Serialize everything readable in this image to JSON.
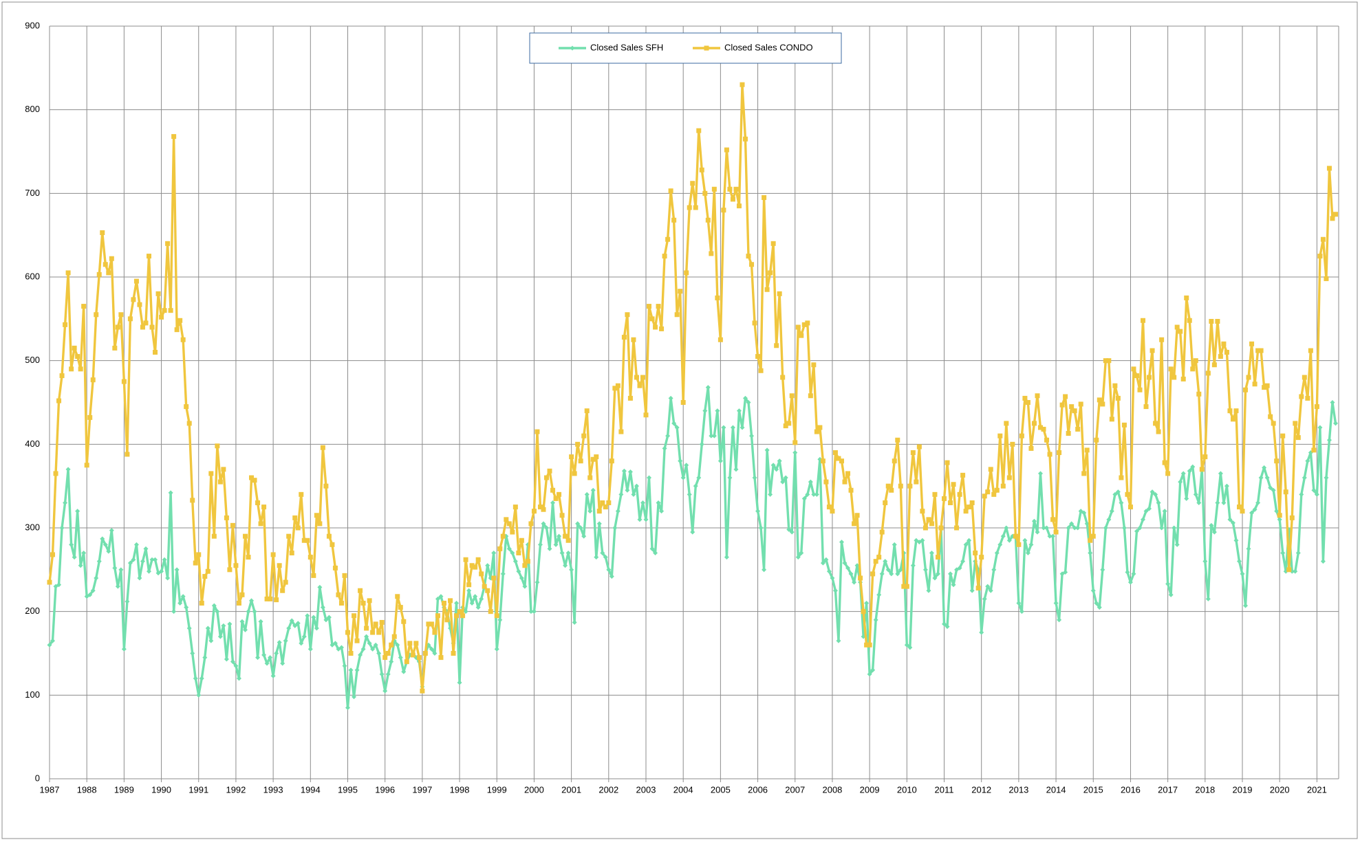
{
  "chart_data": {
    "type": "line",
    "categories": [
      "1987",
      null,
      null,
      null,
      null,
      null,
      null,
      null,
      null,
      null,
      null,
      null,
      "1988",
      null,
      null,
      null,
      null,
      null,
      null,
      null,
      null,
      null,
      null,
      null,
      "1989",
      null,
      null,
      null,
      null,
      null,
      null,
      null,
      null,
      null,
      null,
      null,
      "1990",
      null,
      null,
      null,
      null,
      null,
      null,
      null,
      null,
      null,
      null,
      null,
      "1991",
      null,
      null,
      null,
      null,
      null,
      null,
      null,
      null,
      null,
      null,
      null,
      "1992",
      null,
      null,
      null,
      null,
      null,
      null,
      null,
      null,
      null,
      null,
      null,
      "1993",
      null,
      null,
      null,
      null,
      null,
      null,
      null,
      null,
      null,
      null,
      null,
      "1994",
      null,
      null,
      null,
      null,
      null,
      null,
      null,
      null,
      null,
      null,
      null,
      "1995",
      null,
      null,
      null,
      null,
      null,
      null,
      null,
      null,
      null,
      null,
      null,
      "1996",
      null,
      null,
      null,
      null,
      null,
      null,
      null,
      null,
      null,
      null,
      null,
      "1997",
      null,
      null,
      null,
      null,
      null,
      null,
      null,
      null,
      null,
      null,
      null,
      "1998",
      null,
      null,
      null,
      null,
      null,
      null,
      null,
      null,
      null,
      null,
      null,
      "1999",
      null,
      null,
      null,
      null,
      null,
      null,
      null,
      null,
      null,
      null,
      null,
      "2000",
      null,
      null,
      null,
      null,
      null,
      null,
      null,
      null,
      null,
      null,
      null,
      "2001",
      null,
      null,
      null,
      null,
      null,
      null,
      null,
      null,
      null,
      null,
      null,
      "2002",
      null,
      null,
      null,
      null,
      null,
      null,
      null,
      null,
      null,
      null,
      null,
      "2003",
      null,
      null,
      null,
      null,
      null,
      null,
      null,
      null,
      null,
      null,
      null,
      "2004",
      null,
      null,
      null,
      null,
      null,
      null,
      null,
      null,
      null,
      null,
      null,
      "2005",
      null,
      null,
      null,
      null,
      null,
      null,
      null,
      null,
      null,
      null,
      null,
      "2006",
      null,
      null,
      null,
      null,
      null,
      null,
      null,
      null,
      null,
      null,
      null,
      "2007",
      null,
      null,
      null,
      null,
      null,
      null,
      null,
      null,
      null,
      null,
      null,
      "2008",
      null,
      null,
      null,
      null,
      null,
      null,
      null,
      null,
      null,
      null,
      null,
      "2009",
      null,
      null,
      null,
      null,
      null,
      null,
      null,
      null,
      null,
      null,
      null,
      "2010",
      null,
      null,
      null,
      null,
      null,
      null,
      null,
      null,
      null,
      null,
      null,
      "2011",
      null,
      null,
      null,
      null,
      null,
      null,
      null,
      null,
      null,
      null,
      null,
      "2012",
      null,
      null,
      null,
      null,
      null,
      null,
      null,
      null,
      null,
      null,
      null,
      "2013",
      null,
      null,
      null,
      null,
      null,
      null,
      null,
      null,
      null,
      null,
      null,
      "2014",
      null,
      null,
      null,
      null,
      null,
      null,
      null,
      null,
      null,
      null,
      null,
      "2015",
      null,
      null,
      null,
      null,
      null,
      null,
      null,
      null,
      null,
      null,
      null,
      "2016",
      null,
      null,
      null,
      null,
      null,
      null,
      null,
      null,
      null,
      null,
      null,
      "2017",
      null,
      null,
      null,
      null,
      null,
      null,
      null,
      null,
      null,
      null,
      null,
      "2018",
      null,
      null,
      null,
      null,
      null,
      null,
      null,
      null,
      null,
      null,
      null,
      "2019",
      null,
      null,
      null,
      null,
      null,
      null,
      null,
      null,
      null,
      null,
      null,
      "2020",
      null,
      null,
      null,
      null,
      null,
      null,
      null,
      null,
      null,
      null,
      null,
      "2021",
      null,
      null,
      null,
      null,
      null,
      null
    ],
    "series": [
      {
        "name": "Closed Sales SFH",
        "color": "#72dfae",
        "marker": "diamond",
        "values": [
          160,
          165,
          230,
          232,
          300,
          330,
          370,
          280,
          265,
          320,
          255,
          270,
          218,
          220,
          225,
          240,
          260,
          287,
          280,
          272,
          297,
          252,
          230,
          250,
          155,
          212,
          258,
          262,
          280,
          240,
          260,
          275,
          248,
          262,
          262,
          246,
          248,
          262,
          240,
          342,
          200,
          250,
          210,
          218,
          205,
          180,
          150,
          120,
          100,
          120,
          145,
          180,
          165,
          207,
          200,
          170,
          183,
          143,
          185,
          140,
          135,
          120,
          188,
          178,
          200,
          213,
          200,
          145,
          188,
          148,
          138,
          145,
          123,
          150,
          163,
          138,
          165,
          180,
          189,
          183,
          186,
          162,
          170,
          195,
          155,
          193,
          180,
          229,
          205,
          190,
          193,
          160,
          162,
          155,
          157,
          135,
          85,
          130,
          98,
          130,
          148,
          155,
          170,
          162,
          155,
          160,
          150,
          125,
          105,
          125,
          140,
          165,
          160,
          145,
          128,
          140,
          148,
          150,
          145,
          140,
          110,
          150,
          160,
          155,
          150,
          215,
          218,
          205,
          200,
          180,
          162,
          210,
          115,
          205,
          200,
          225,
          210,
          218,
          205,
          215,
          230,
          255,
          240,
          270,
          155,
          190,
          245,
          290,
          275,
          270,
          260,
          248,
          240,
          230,
          280,
          200,
          200,
          235,
          280,
          305,
          300,
          275,
          330,
          280,
          290,
          270,
          255,
          270,
          250,
          187,
          305,
          300,
          290,
          340,
          320,
          345,
          265,
          305,
          270,
          265,
          250,
          242,
          300,
          320,
          340,
          368,
          345,
          367,
          340,
          350,
          310,
          330,
          310,
          360,
          275,
          270,
          330,
          320,
          395,
          410,
          455,
          425,
          420,
          380,
          360,
          375,
          340,
          295,
          350,
          360,
          400,
          440,
          468,
          410,
          410,
          440,
          380,
          420,
          265,
          360,
          420,
          370,
          440,
          420,
          455,
          450,
          410,
          360,
          320,
          300,
          250,
          393,
          340,
          375,
          370,
          380,
          355,
          360,
          298,
          295,
          390,
          265,
          270,
          335,
          340,
          355,
          340,
          340,
          382,
          258,
          262,
          248,
          240,
          225,
          165,
          283,
          258,
          252,
          245,
          235,
          255,
          235,
          170,
          210,
          125,
          130,
          190,
          220,
          245,
          260,
          250,
          245,
          280,
          245,
          250,
          270,
          160,
          157,
          255,
          285,
          283,
          285,
          250,
          225,
          270,
          240,
          245,
          300,
          185,
          182,
          245,
          232,
          250,
          252,
          260,
          280,
          285,
          225,
          260,
          250,
          175,
          215,
          230,
          225,
          250,
          270,
          280,
          290,
          300,
          285,
          290,
          290,
          210,
          200,
          285,
          270,
          280,
          308,
          295,
          365,
          300,
          300,
          290,
          290,
          210,
          190,
          245,
          247,
          300,
          305,
          300,
          300,
          320,
          318,
          305,
          270,
          225,
          210,
          205,
          250,
          300,
          310,
          320,
          340,
          343,
          330,
          300,
          247,
          235,
          245,
          296,
          300,
          310,
          320,
          323,
          343,
          340,
          330,
          300,
          320,
          233,
          220,
          300,
          280,
          355,
          365,
          335,
          368,
          373,
          340,
          330,
          370,
          260,
          215,
          303,
          295,
          330,
          365,
          330,
          350,
          310,
          306,
          285,
          260,
          245,
          207,
          275,
          318,
          322,
          330,
          360,
          372,
          360,
          348,
          345,
          320,
          310,
          270,
          248,
          298,
          248,
          248,
          270,
          340,
          360,
          380,
          390,
          345,
          340,
          420,
          260,
          360,
          405,
          450,
          425
        ]
      },
      {
        "name": "Closed Sales CONDO",
        "color": "#f0c63e",
        "marker": "square",
        "values": [
          235,
          268,
          365,
          452,
          482,
          543,
          605,
          490,
          515,
          505,
          490,
          565,
          375,
          432,
          477,
          555,
          603,
          653,
          615,
          605,
          622,
          515,
          540,
          555,
          475,
          388,
          550,
          573,
          595,
          567,
          540,
          545,
          625,
          540,
          510,
          580,
          552,
          560,
          640,
          560,
          768,
          537,
          548,
          525,
          445,
          425,
          333,
          258,
          268,
          210,
          242,
          248,
          365,
          290,
          398,
          355,
          370,
          312,
          250,
          303,
          255,
          210,
          220,
          290,
          265,
          360,
          357,
          330,
          305,
          325,
          215,
          215,
          268,
          214,
          255,
          225,
          235,
          290,
          270,
          312,
          300,
          340,
          285,
          285,
          265,
          243,
          315,
          305,
          396,
          350,
          290,
          280,
          252,
          220,
          210,
          243,
          175,
          150,
          195,
          165,
          225,
          210,
          180,
          213,
          175,
          185,
          175,
          187,
          145,
          150,
          160,
          170,
          218,
          205,
          188,
          140,
          162,
          148,
          162,
          145,
          105,
          150,
          185,
          185,
          175,
          195,
          145,
          210,
          190,
          213,
          150,
          195,
          200,
          195,
          262,
          232,
          255,
          253,
          262,
          245,
          230,
          225,
          200,
          240,
          195,
          275,
          290,
          310,
          305,
          295,
          325,
          270,
          285,
          255,
          260,
          305,
          320,
          415,
          325,
          322,
          360,
          368,
          345,
          335,
          340,
          315,
          290,
          285,
          385,
          365,
          400,
          380,
          410,
          440,
          360,
          382,
          385,
          320,
          330,
          325,
          330,
          380,
          467,
          470,
          415,
          528,
          555,
          455,
          525,
          480,
          470,
          480,
          435,
          565,
          550,
          540,
          565,
          538,
          625,
          645,
          703,
          668,
          555,
          583,
          450,
          605,
          683,
          712,
          683,
          775,
          728,
          700,
          668,
          628,
          705,
          575,
          525,
          680,
          752,
          705,
          693,
          705,
          685,
          830,
          765,
          625,
          615,
          545,
          505,
          488,
          695,
          585,
          605,
          640,
          518,
          580,
          480,
          422,
          425,
          458,
          402,
          540,
          530,
          543,
          545,
          458,
          495,
          415,
          420,
          380,
          355,
          325,
          320,
          390,
          383,
          380,
          355,
          365,
          345,
          305,
          315,
          240,
          200,
          160,
          160,
          245,
          260,
          265,
          295,
          330,
          350,
          345,
          380,
          405,
          350,
          230,
          230,
          350,
          390,
          355,
          397,
          320,
          300,
          310,
          305,
          340,
          265,
          300,
          335,
          378,
          330,
          352,
          300,
          340,
          363,
          320,
          325,
          330,
          270,
          228,
          265,
          338,
          343,
          370,
          340,
          345,
          410,
          350,
          425,
          360,
          400,
          290,
          280,
          410,
          455,
          450,
          395,
          425,
          458,
          420,
          418,
          405,
          388,
          310,
          295,
          390,
          447,
          457,
          413,
          445,
          440,
          418,
          448,
          365,
          393,
          285,
          290,
          405,
          453,
          448,
          500,
          500,
          430,
          470,
          455,
          360,
          423,
          340,
          325,
          490,
          482,
          465,
          548,
          445,
          480,
          512,
          425,
          415,
          525,
          378,
          365,
          490,
          480,
          540,
          535,
          478,
          575,
          548,
          490,
          500,
          460,
          370,
          385,
          485,
          547,
          495,
          547,
          505,
          520,
          510,
          440,
          430,
          440,
          325,
          320,
          465,
          480,
          520,
          472,
          512,
          512,
          468,
          470,
          433,
          425,
          380,
          315,
          410,
          343,
          250,
          312,
          425,
          408,
          457,
          480,
          455,
          512,
          393,
          445,
          625,
          645,
          598,
          730,
          670,
          675
        ]
      }
    ],
    "ylim": [
      0,
      900
    ],
    "yticks": [
      0,
      100,
      200,
      300,
      400,
      500,
      600,
      700,
      800,
      900
    ],
    "grid": true,
    "legend": "top"
  }
}
